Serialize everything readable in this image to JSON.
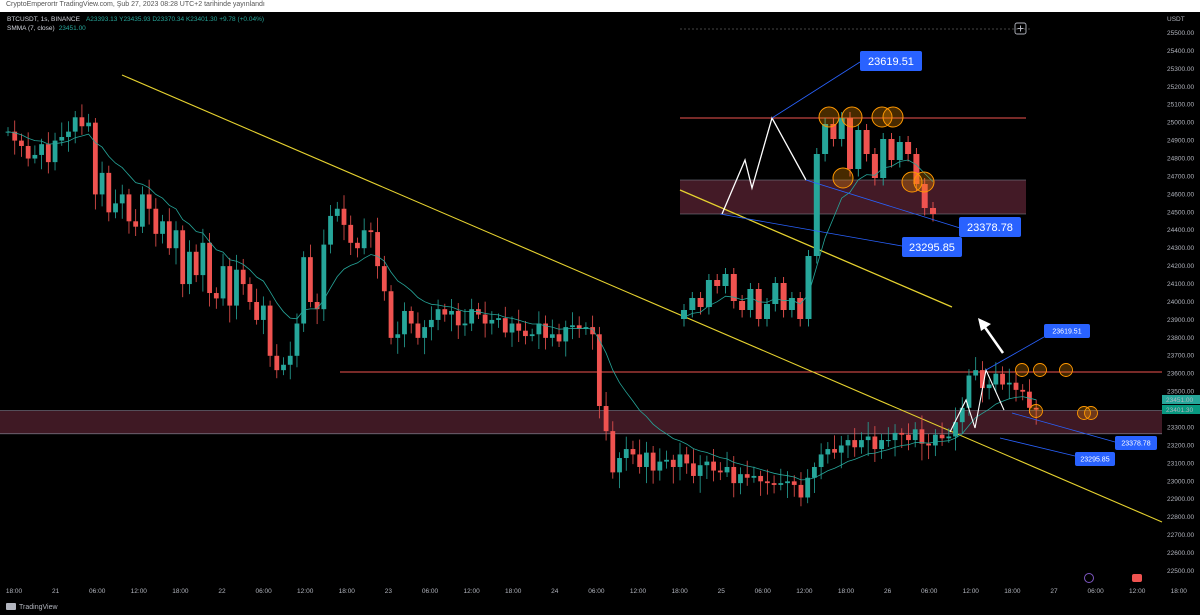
{
  "header": {
    "publish_info": "CryptoEmperortr TradingView.com, Şub 27, 2023 08:28 UTC+2 tarihinde yayınlandı"
  },
  "legend": {
    "symbol": "BTCUSDT, 1s, BINANCE",
    "ohlc": "A23393.13  Y23435.93  D23370.34  K23401.30  +9.78 (+0.04%)",
    "sma_name": "SMMA (7, close)",
    "sma_value": "23451.00"
  },
  "axis": {
    "currency": "USDT",
    "price_ticks": [
      "25500.00",
      "25400.00",
      "25300.00",
      "25200.00",
      "25100.00",
      "25000.00",
      "24900.00",
      "24800.00",
      "24700.00",
      "24600.00",
      "24500.00",
      "24400.00",
      "24300.00",
      "24200.00",
      "24100.00",
      "24000.00",
      "23900.00",
      "23800.00",
      "23700.00",
      "23600.00",
      "23500.00",
      "23400.00",
      "23300.00",
      "23200.00",
      "23100.00",
      "23000.00",
      "22900.00",
      "22800.00",
      "22700.00",
      "22600.00",
      "22500.00"
    ],
    "time_ticks": [
      "18:00",
      "21",
      "06:00",
      "12:00",
      "18:00",
      "22",
      "06:00",
      "12:00",
      "18:00",
      "23",
      "06:00",
      "12:00",
      "18:00",
      "24",
      "06:00",
      "12:00",
      "18:00",
      "25",
      "06:00",
      "12:00",
      "18:00",
      "26",
      "06:00",
      "12:00",
      "18:00",
      "27",
      "06:00",
      "12:00",
      "18:00"
    ],
    "price_badge_sma": "23451.00",
    "price_badge_last": "23401.30"
  },
  "annotations": {
    "main_high": "23619.51",
    "main_mid": "23378.78",
    "main_low": "23295.85",
    "inset_high": "23619.51",
    "inset_mid": "23378.78",
    "inset_low": "23295.85"
  },
  "colors": {
    "up": "#26a69a",
    "down": "#ef5350",
    "sma": "#26a69a",
    "trendline": "#e6d22f",
    "resistance": "#ef5350",
    "zone": "#4a1d2a",
    "label_blue": "#2962ff",
    "circle": "#ff9800"
  },
  "footer": {
    "brand": "TradingView"
  },
  "chart_data": {
    "type": "candlestick",
    "symbol": "BTCUSDT",
    "exchange": "BINANCE",
    "timeframe": "1s",
    "ylabel": "USDT",
    "ylim": [
      22450,
      25560
    ],
    "grid": false,
    "indicator": "SMMA (7, close)",
    "levels": [
      {
        "name": "resistance",
        "value": 23610
      },
      {
        "name": "zone_top",
        "value": 23395
      },
      {
        "name": "zone_bottom",
        "value": 23265
      }
    ],
    "trendline": {
      "from": {
        "time": "20 12:00",
        "price": 25265
      },
      "to": {
        "time": "27 18:00",
        "price": 22780
      }
    },
    "targets": [
      23619.51,
      23378.78,
      23295.85
    ],
    "close": [
      24950,
      24900,
      24870,
      24800,
      24820,
      24880,
      24780,
      24900,
      24920,
      24950,
      25030,
      24980,
      25000,
      24600,
      24720,
      24500,
      24550,
      24600,
      24450,
      24420,
      24600,
      24520,
      24380,
      24450,
      24300,
      24400,
      24100,
      24280,
      24150,
      24330,
      24050,
      24020,
      24200,
      23980,
      24180,
      24100,
      24000,
      23900,
      23980,
      23700,
      23620,
      23650,
      23700,
      23880,
      24250,
      24000,
      23960,
      24320,
      24480,
      24520,
      24430,
      24330,
      24300,
      24400,
      24390,
      24200,
      24060,
      23800,
      23820,
      23950,
      23880,
      23800,
      23860,
      23900,
      23960,
      23930,
      23950,
      23870,
      23880,
      23960,
      23930,
      23880,
      23900,
      23910,
      23830,
      23880,
      23840,
      23810,
      23820,
      23880,
      23800,
      23820,
      23780,
      23860,
      23870,
      23850,
      23860,
      23820,
      23420,
      23280,
      23050,
      23130,
      23180,
      23150,
      23080,
      23160,
      23060,
      23110,
      23120,
      23080,
      23150,
      23100,
      23030,
      23090,
      23110,
      23060,
      23050,
      23080,
      22990,
      23040,
      23020,
      23030,
      23000,
      22990,
      22980,
      22990,
      23000,
      22980,
      22910,
      23020,
      23080,
      23150,
      23180,
      23160,
      23200,
      23230,
      23190,
      23230,
      23250,
      23180,
      23230,
      23230,
      23270,
      23260,
      23230,
      23290,
      23210,
      23200,
      23260,
      23240,
      23250,
      23330,
      23410,
      23590,
      23620,
      23520,
      23540,
      23600,
      23540,
      23550,
      23510,
      23500,
      23410,
      23400
    ]
  }
}
